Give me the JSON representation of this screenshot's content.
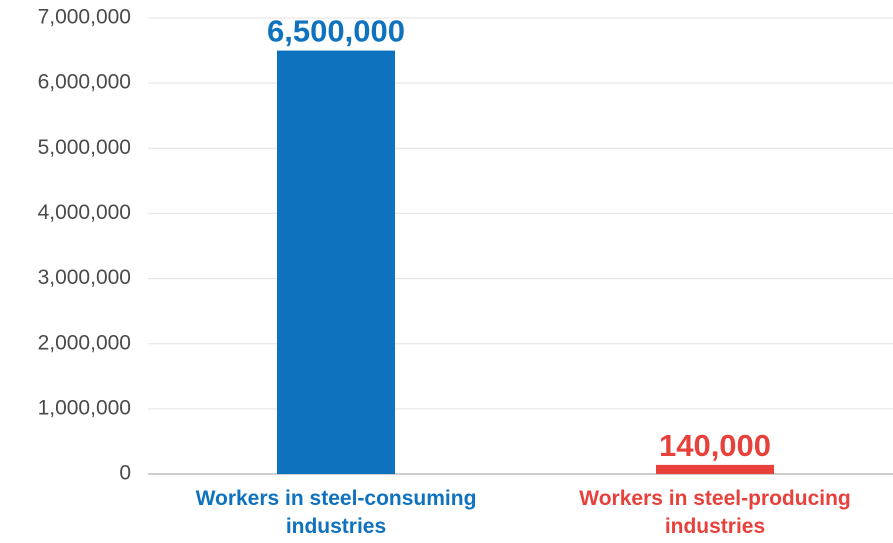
{
  "chart_data": {
    "type": "bar",
    "title": "",
    "xlabel": "",
    "ylabel": "",
    "ylim": [
      0,
      7000000
    ],
    "yticks": [
      0,
      1000000,
      2000000,
      3000000,
      4000000,
      5000000,
      6000000,
      7000000
    ],
    "ytick_labels": [
      "0",
      "1,000,000",
      "2,000,000",
      "3,000,000",
      "4,000,000",
      "5,000,000",
      "6,000,000",
      "7,000,000"
    ],
    "grid": true,
    "categories": [
      {
        "lines": [
          "Workers in steel-consuming",
          "industries"
        ],
        "value": 6500000,
        "value_label": "6,500,000",
        "color": "#0f72bf"
      },
      {
        "lines": [
          "Workers in steel-producing",
          "industries"
        ],
        "value": 140000,
        "value_label": "140,000",
        "color": "#e8413c"
      }
    ]
  }
}
